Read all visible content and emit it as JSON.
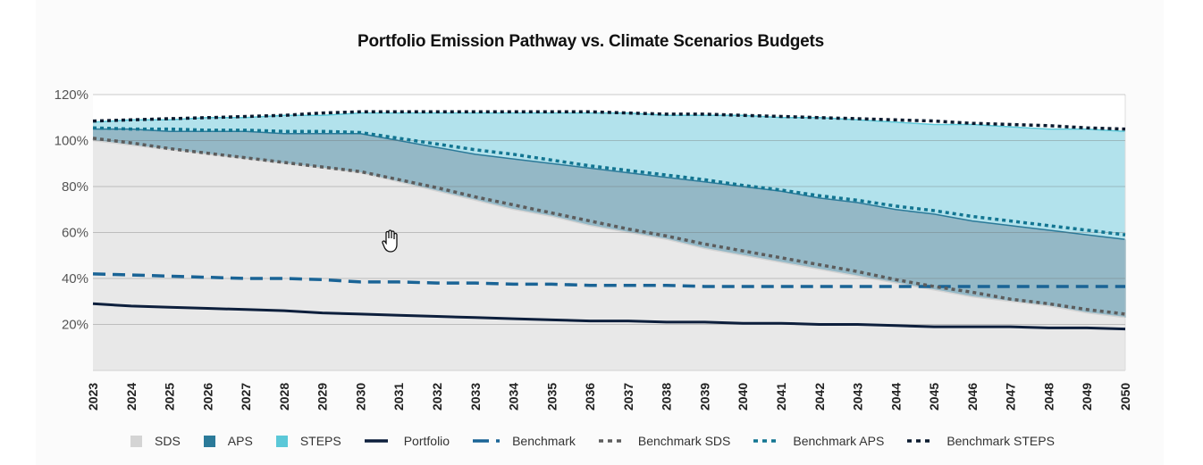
{
  "chart_data": {
    "type": "area",
    "title": "Portfolio Emission Pathway vs. Climate Scenarios Budgets",
    "xlabel": "",
    "ylabel": "",
    "ylim": [
      0,
      120
    ],
    "yticks": [
      "20%",
      "40%",
      "60%",
      "80%",
      "100%",
      "120%"
    ],
    "ytick_values": [
      20,
      40,
      60,
      80,
      100,
      120
    ],
    "grid": true,
    "legend_position": "bottom",
    "x": [
      "2023",
      "2024",
      "2025",
      "2026",
      "2027",
      "2028",
      "2029",
      "2030",
      "2031",
      "2032",
      "2033",
      "2034",
      "2035",
      "2036",
      "2037",
      "2038",
      "2039",
      "2040",
      "2041",
      "2042",
      "2043",
      "2044",
      "2045",
      "2046",
      "2047",
      "2048",
      "2049",
      "2050"
    ],
    "series": [
      {
        "name": "STEPS",
        "kind": "area",
        "color": "#5bc8d8",
        "values": [
          108,
          109,
          109,
          110,
          110,
          111,
          111,
          112,
          112,
          112,
          112,
          112,
          112,
          112,
          112,
          111,
          111,
          111,
          110,
          110,
          109,
          108,
          107,
          107,
          106,
          105,
          105,
          104
        ]
      },
      {
        "name": "APS",
        "kind": "area",
        "color": "#2b7a99",
        "values": [
          105,
          105,
          104,
          104,
          104,
          103,
          103,
          103,
          100,
          97,
          94,
          92,
          90,
          88,
          86,
          84,
          82,
          80,
          78,
          75,
          73,
          70,
          68,
          65,
          63,
          61,
          59,
          57
        ]
      },
      {
        "name": "SDS",
        "kind": "area",
        "color": "#d4d4d4",
        "values": [
          100,
          98,
          96,
          94,
          92,
          90,
          88,
          86,
          82,
          78,
          74,
          70,
          67,
          63,
          60,
          57,
          53,
          50,
          47,
          44,
          41,
          38,
          35,
          32,
          30,
          28,
          25,
          23
        ]
      },
      {
        "name": "Portfolio",
        "kind": "line",
        "style": "solid",
        "color": "#0d1f3c",
        "values": [
          29,
          28,
          27.5,
          27,
          26.5,
          26,
          25,
          24.5,
          24,
          23.5,
          23,
          22.5,
          22,
          21.5,
          21.5,
          21,
          21,
          20.5,
          20.5,
          20,
          20,
          19.5,
          19,
          19,
          19,
          18.5,
          18.5,
          18
        ]
      },
      {
        "name": "Benchmark",
        "kind": "line",
        "style": "dashed",
        "color": "#1a6496",
        "values": [
          42,
          41.5,
          41,
          40.5,
          40,
          40,
          39.5,
          38.5,
          38.5,
          38,
          38,
          37.5,
          37.5,
          37,
          37,
          37,
          36.5,
          36.5,
          36.5,
          36.5,
          36.5,
          36.5,
          36.5,
          36.5,
          36.5,
          36.5,
          36.5,
          36.5
        ]
      },
      {
        "name": "Benchmark SDS",
        "kind": "line",
        "style": "dotted",
        "color": "#5c5c5c",
        "values": [
          101,
          99,
          96.5,
          94.5,
          92.5,
          90.5,
          88.5,
          86.5,
          83,
          79.5,
          75.5,
          72,
          68.5,
          65,
          61.5,
          58.5,
          55,
          52,
          49,
          46,
          43,
          39.5,
          36.5,
          34,
          31,
          29,
          26.5,
          24.5
        ]
      },
      {
        "name": "Benchmark APS",
        "kind": "line",
        "style": "dotted",
        "color": "#127591",
        "values": [
          105.5,
          105,
          105,
          104.5,
          104.5,
          104,
          104,
          103.5,
          101,
          98.5,
          96,
          94,
          91.5,
          89,
          87,
          85,
          83,
          80.5,
          78.5,
          76,
          74,
          71.5,
          69.5,
          67,
          65,
          63,
          61,
          59
        ]
      },
      {
        "name": "Benchmark STEPS",
        "kind": "line",
        "style": "dotted",
        "color": "#0b1a2e",
        "values": [
          108.5,
          109,
          109.5,
          110,
          110.5,
          111,
          112,
          112.5,
          112.5,
          112.5,
          112.5,
          112.5,
          112.5,
          112.5,
          112,
          111.5,
          111.5,
          111,
          110.5,
          110,
          109.5,
          109,
          108.5,
          107.5,
          107,
          106.5,
          105.5,
          105
        ]
      }
    ]
  },
  "legend": [
    {
      "label": "SDS",
      "type": "swatch",
      "color": "#d4d4d4"
    },
    {
      "label": "APS",
      "type": "swatch",
      "color": "#2b7a99"
    },
    {
      "label": "STEPS",
      "type": "swatch",
      "color": "#5bc8d8"
    },
    {
      "label": "Portfolio",
      "type": "solid",
      "color": "#0d1f3c"
    },
    {
      "label": "Benchmark",
      "type": "dashed",
      "color": "#1a6496"
    },
    {
      "label": "Benchmark SDS",
      "type": "dotted",
      "color": "#5c5c5c"
    },
    {
      "label": "Benchmark APS",
      "type": "dotted",
      "color": "#127591"
    },
    {
      "label": "Benchmark STEPS",
      "type": "dotted",
      "color": "#0b1a2e"
    }
  ],
  "cursor": {
    "icon": "hand-pointer-icon"
  }
}
